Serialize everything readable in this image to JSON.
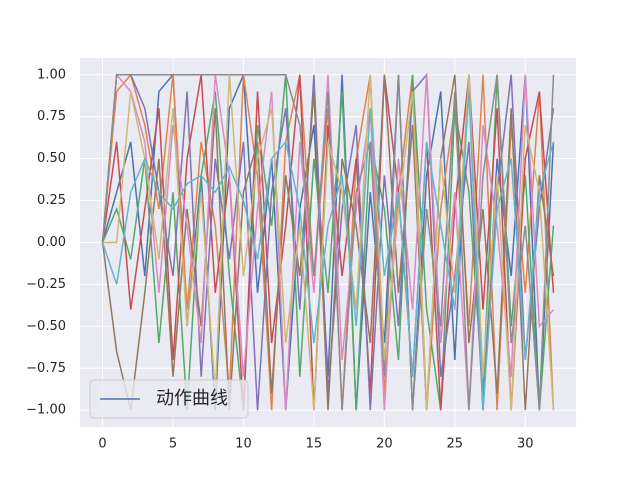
{
  "chart_data": {
    "type": "line",
    "x": [
      0,
      1,
      2,
      3,
      4,
      5,
      6,
      7,
      8,
      9,
      10,
      11,
      12,
      13,
      14,
      15,
      16,
      17,
      18,
      19,
      20,
      21,
      22,
      23,
      24,
      25,
      26,
      27,
      28,
      29,
      30,
      31,
      32
    ],
    "xlim": [
      -1.6,
      33.6
    ],
    "xticks": [
      0,
      5,
      10,
      15,
      20,
      25,
      30
    ],
    "ylim": [
      -1.1,
      1.1
    ],
    "yticks": [
      {
        "value": -1,
        "label": "−1.00"
      },
      {
        "value": -0.75,
        "label": "−0.75"
      },
      {
        "value": -0.5,
        "label": "−0.50"
      },
      {
        "value": -0.25,
        "label": "−0.25"
      },
      {
        "value": 0,
        "label": "0.00"
      },
      {
        "value": 0.25,
        "label": "0.25"
      },
      {
        "value": 0.5,
        "label": "0.50"
      },
      {
        "value": 0.75,
        "label": "0.75"
      },
      {
        "value": 1,
        "label": "1.00"
      }
    ],
    "grid": true,
    "legend": "lower left",
    "series": [
      {
        "name": "动作曲线",
        "color": "#4c72b0",
        "values": [
          0,
          0.3,
          0.6,
          -0.2,
          0.9,
          1,
          -0.5,
          0.4,
          -1,
          0.8,
          1,
          -0.3,
          0.5,
          -1,
          0.2,
          0.7,
          -0.8,
          1,
          -1,
          0.3,
          -0.6,
          1,
          -1,
          0.4,
          0.9,
          -0.7,
          1,
          -1,
          0.5,
          -0.2,
          1,
          -1,
          0.6
        ]
      },
      {
        "color": "#dd8452",
        "values": [
          0,
          0.9,
          1,
          0.7,
          0.2,
          1,
          -0.4,
          0.6,
          0.1,
          -0.9,
          1,
          0.4,
          -1,
          0.6,
          1,
          -0.2,
          0.8,
          -1,
          0.5,
          1,
          -0.9,
          0.3,
          1,
          -1,
          0.2,
          0.8,
          -0.5,
          1,
          -1,
          0.7,
          -0.3,
          0.9,
          -1
        ]
      },
      {
        "color": "#55a868",
        "values": [
          0,
          0.2,
          -0.1,
          0.5,
          -0.6,
          0.3,
          -1,
          0.4,
          0.9,
          -0.2,
          -1,
          0.7,
          0.1,
          1,
          -0.8,
          0.5,
          -0.3,
          0.9,
          -1,
          0.6,
          0.2,
          -0.7,
          1,
          -0.4,
          -1,
          0.8,
          0.3,
          -0.9,
          1,
          -0.5,
          0.4,
          -1,
          0.1
        ]
      },
      {
        "color": "#c44e52",
        "values": [
          0,
          0.6,
          -0.4,
          0.2,
          0.8,
          -0.7,
          0.5,
          1,
          -0.3,
          0.4,
          -1,
          0.9,
          -0.6,
          0.1,
          1,
          -1,
          0.7,
          -0.2,
          0.5,
          -0.9,
          1,
          0.3,
          -0.8,
          0.6,
          -1,
          0.2,
          1,
          -0.4,
          0.8,
          -1,
          0.5,
          0.9,
          -0.3
        ]
      },
      {
        "color": "#8172b3",
        "values": [
          0,
          1,
          1,
          0.8,
          0.3,
          -0.2,
          0.9,
          -0.8,
          0.5,
          -0.1,
          0.6,
          -1,
          0.3,
          0.8,
          -0.4,
          1,
          -0.9,
          0.2,
          0.7,
          -1,
          0.4,
          -0.5,
          0.9,
          1,
          -0.8,
          -0.2,
          0.6,
          -1,
          0.3,
          1,
          -0.7,
          0.2,
          0.8
        ]
      },
      {
        "color": "#937860",
        "values": [
          0,
          -0.65,
          -1,
          -0.3,
          0.5,
          -0.8,
          0.2,
          -0.5,
          0.8,
          -1,
          0.3,
          0.6,
          -0.9,
          0.4,
          -0.2,
          0.9,
          -1,
          0.5,
          0.1,
          -0.6,
          1,
          -0.3,
          0.7,
          -1,
          0.5,
          1,
          -0.6,
          0.2,
          -0.9,
          0.8,
          -1,
          0.4,
          -0.2
        ]
      },
      {
        "color": "#da8bc3",
        "values": [
          0,
          1,
          0.9,
          0.6,
          -0.3,
          0.7,
          0.1,
          -0.6,
          1,
          0.4,
          -0.8,
          0.2,
          0.9,
          -1,
          0.6,
          -0.3,
          1,
          -0.7,
          0.2,
          0.8,
          -1,
          0.5,
          -0.4,
          1,
          -0.6,
          0.3,
          -1,
          0.7,
          0.1,
          -0.8,
          1,
          -0.5,
          -0.4
        ]
      },
      {
        "color": "#8c8c8c",
        "values": [
          0,
          1,
          1,
          1,
          1,
          1,
          1,
          1,
          1,
          1,
          1,
          1,
          1,
          1,
          0.7,
          -0.2,
          0.9,
          -1,
          0.3,
          0.6,
          -0.8,
          1,
          -1,
          0.2,
          -0.5,
          0.9,
          -1,
          0.4,
          1,
          -0.6,
          0.1,
          -1,
          1
        ]
      },
      {
        "color": "#ccb974",
        "values": [
          0,
          0,
          0.9,
          0.5,
          -0.1,
          0.8,
          -0.5,
          0.3,
          -0.9,
          1,
          -0.2,
          0.5,
          0.8,
          -0.6,
          0.1,
          -1,
          0.6,
          0.3,
          -0.4,
          1,
          -0.7,
          0.2,
          0.9,
          -1,
          0.5,
          -0.3,
          1,
          -0.8,
          0.4,
          -1,
          0.7,
          0.3,
          -1
        ]
      },
      {
        "color": "#64b5cd",
        "values": [
          0,
          -0.25,
          0.3,
          0.5,
          0.3,
          0.2,
          0.35,
          0.4,
          0.3,
          0.45,
          0.25,
          -0.1,
          0.5,
          0.6,
          0.2,
          -0.6,
          0.1,
          0.4,
          -0.5,
          0.8,
          -0.2,
          0.3,
          -0.8,
          0.6,
          0.1,
          -0.4,
          0.9,
          -1,
          0.2,
          0.5,
          -0.7,
          0.3,
          0.6
        ]
      }
    ]
  }
}
